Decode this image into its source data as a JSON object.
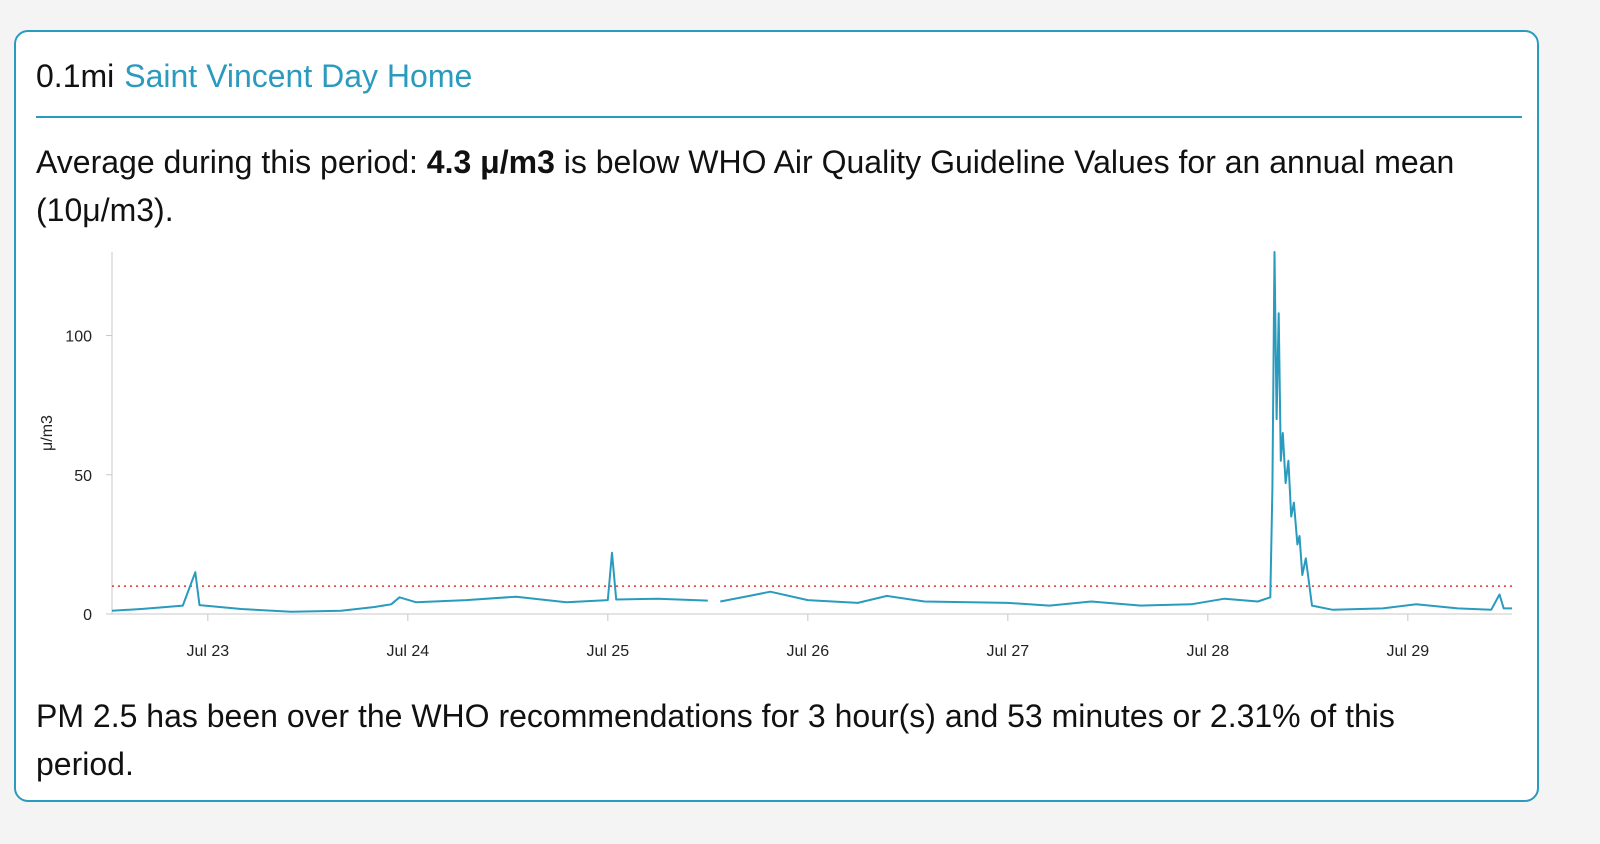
{
  "card": {
    "distance": "0.1mi",
    "site_name": "Saint Vincent Day Home",
    "avg_prefix": "Average during this period: ",
    "avg_value": "4.3 μ/m3",
    "avg_suffix": " is below WHO Air Quality Guideline Values for an annual mean (10μ/m3).",
    "over_text": "PM 2.5 has been over the WHO recommendations for 3 hour(s) and 53 minutes or 2.31% of this period."
  },
  "colors": {
    "accent": "#2a9bbe",
    "series": "#2a9bbe",
    "threshold": "#e0312d",
    "axis": "#c8c8c8"
  },
  "chart_data": {
    "type": "line",
    "title": "",
    "xlabel": "",
    "ylabel": "μ/m3",
    "y_ticks": [
      0,
      50,
      100
    ],
    "ylim": [
      0,
      130
    ],
    "x_ticks": [
      "Jul 23",
      "Jul 24",
      "Jul 25",
      "Jul 26",
      "Jul 27",
      "Jul 28",
      "Jul 29"
    ],
    "xlim": [
      "2020-07-22T12:30",
      "2020-07-29T12:30"
    ],
    "grid": false,
    "legend": "none",
    "threshold": {
      "value": 10,
      "style": "dotted"
    },
    "series": [
      {
        "points": [
          [
            "2020-07-22T12:30",
            1.2
          ],
          [
            "2020-07-22T16:00",
            1.8
          ],
          [
            "2020-07-22T19:00",
            2.5
          ],
          [
            "2020-07-22T21:00",
            3.0
          ],
          [
            "2020-07-22T22:30",
            15.0
          ],
          [
            "2020-07-22T23:00",
            3.2
          ],
          [
            "2020-07-23T04:00",
            1.8
          ],
          [
            "2020-07-23T10:00",
            0.8
          ],
          [
            "2020-07-23T16:00",
            1.2
          ],
          [
            "2020-07-23T20:00",
            2.5
          ],
          [
            "2020-07-23T22:00",
            3.5
          ],
          [
            "2020-07-23T23:00",
            6.0
          ],
          [
            "2020-07-24T01:00",
            4.2
          ],
          [
            "2020-07-24T07:00",
            5.0
          ],
          [
            "2020-07-24T13:00",
            6.2
          ],
          [
            "2020-07-24T19:00",
            4.2
          ],
          [
            "2020-07-25T00:00",
            5.0
          ],
          [
            "2020-07-25T00:30",
            22.0
          ],
          [
            "2020-07-25T01:00",
            5.2
          ],
          [
            "2020-07-25T06:00",
            5.5
          ],
          [
            "2020-07-25T12:00",
            4.8
          ],
          [
            "2020-07-25T12:30",
            null
          ],
          [
            "2020-07-25T13:30",
            4.5
          ],
          [
            "2020-07-25T17:00",
            6.5
          ],
          [
            "2020-07-25T19:30",
            8.0
          ],
          [
            "2020-07-26T00:00",
            5.0
          ],
          [
            "2020-07-26T06:00",
            4.0
          ],
          [
            "2020-07-26T09:30",
            6.5
          ],
          [
            "2020-07-26T14:00",
            4.5
          ],
          [
            "2020-07-27T00:00",
            4.0
          ],
          [
            "2020-07-27T05:00",
            3.0
          ],
          [
            "2020-07-27T10:00",
            4.5
          ],
          [
            "2020-07-27T16:00",
            3.0
          ],
          [
            "2020-07-27T22:00",
            3.5
          ],
          [
            "2020-07-28T02:00",
            5.5
          ],
          [
            "2020-07-28T06:00",
            4.5
          ],
          [
            "2020-07-28T07:30",
            6.0
          ],
          [
            "2020-07-28T07:45",
            45.0
          ],
          [
            "2020-07-28T08:00",
            130.0
          ],
          [
            "2020-07-28T08:15",
            70.0
          ],
          [
            "2020-07-28T08:30",
            108.0
          ],
          [
            "2020-07-28T08:45",
            55.0
          ],
          [
            "2020-07-28T09:00",
            65.0
          ],
          [
            "2020-07-28T09:20",
            47.0
          ],
          [
            "2020-07-28T09:40",
            55.0
          ],
          [
            "2020-07-28T10:00",
            35.0
          ],
          [
            "2020-07-28T10:20",
            40.0
          ],
          [
            "2020-07-28T10:45",
            25.0
          ],
          [
            "2020-07-28T11:00",
            28.0
          ],
          [
            "2020-07-28T11:20",
            14.0
          ],
          [
            "2020-07-28T11:45",
            20.0
          ],
          [
            "2020-07-28T12:30",
            3.0
          ],
          [
            "2020-07-28T15:00",
            1.5
          ],
          [
            "2020-07-28T21:00",
            2.0
          ],
          [
            "2020-07-29T01:00",
            3.5
          ],
          [
            "2020-07-29T06:00",
            2.0
          ],
          [
            "2020-07-29T10:00",
            1.5
          ],
          [
            "2020-07-29T11:00",
            7.0
          ],
          [
            "2020-07-29T11:30",
            2.0
          ],
          [
            "2020-07-29T12:30",
            2.0
          ]
        ]
      }
    ]
  }
}
